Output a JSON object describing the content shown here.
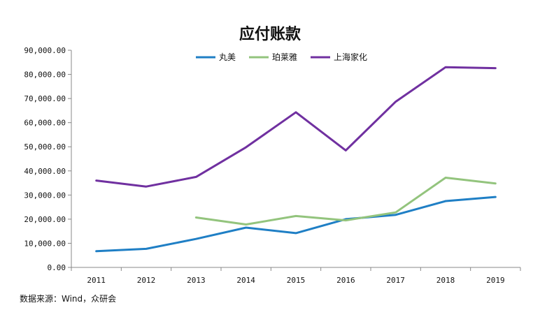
{
  "chart_data": {
    "type": "line",
    "title": "应付账款",
    "categories": [
      "2011",
      "2012",
      "2013",
      "2014",
      "2015",
      "2016",
      "2017",
      "2018",
      "2019"
    ],
    "ylim": [
      0,
      90000
    ],
    "y_ticks": [
      "0.00",
      "10,000.00",
      "20,000.00",
      "30,000.00",
      "40,000.00",
      "50,000.00",
      "60,000.00",
      "70,000.00",
      "80,000.00",
      "90,000.00"
    ],
    "grid": false,
    "legend_position": "top",
    "series": [
      {
        "name": "丸美",
        "color": "#1f7fc5",
        "values": [
          6700,
          7700,
          11800,
          16500,
          14200,
          20000,
          21800,
          27500,
          29200
        ]
      },
      {
        "name": "珀莱雅",
        "color": "#93c47d",
        "values": [
          null,
          null,
          20700,
          17800,
          21300,
          19500,
          22800,
          37200,
          34800
        ]
      },
      {
        "name": "上海家化",
        "color": "#7030a0",
        "values": [
          36000,
          33500,
          37500,
          49800,
          64300,
          48500,
          68700,
          83000,
          82600
        ]
      }
    ],
    "source": "数据来源：Wind，众研会"
  }
}
